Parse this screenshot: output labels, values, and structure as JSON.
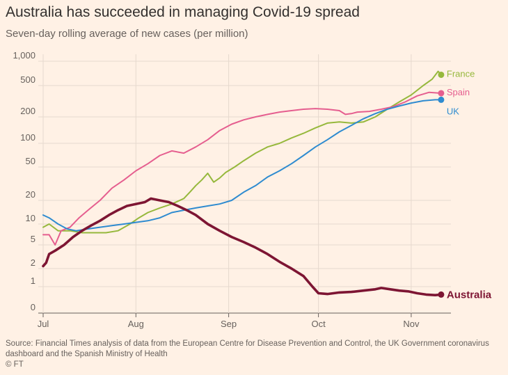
{
  "title": "Australia has succeeded in managing Covid-19 spread",
  "subtitle": "Seven-day rolling average of new cases (per million)",
  "source": "Source: Financial Times analysis of data from the European Centre for Disease Prevention and Control, the UK Government coronavirus dashboard and the Spanish Ministry of Health",
  "credit": "© FT",
  "chart_data": {
    "type": "line",
    "y_scale": "log-like (symlog)",
    "y_ticks": [
      {
        "value": 0,
        "label": "0"
      },
      {
        "value": 1,
        "label": "1"
      },
      {
        "value": 2,
        "label": "2"
      },
      {
        "value": 5,
        "label": "5"
      },
      {
        "value": 10,
        "label": "10"
      },
      {
        "value": 20,
        "label": "20"
      },
      {
        "value": 50,
        "label": "50"
      },
      {
        "value": 100,
        "label": "100"
      },
      {
        "value": 200,
        "label": "200"
      },
      {
        "value": 500,
        "label": "500"
      },
      {
        "value": 1000,
        "label": "1,000"
      }
    ],
    "x_ticks": [
      {
        "day": 1,
        "label": "Jul"
      },
      {
        "day": 32,
        "label": "Aug"
      },
      {
        "day": 63,
        "label": "Sep"
      },
      {
        "day": 93,
        "label": "Oct"
      },
      {
        "day": 124,
        "label": "Nov"
      }
    ],
    "x_range": [
      1,
      134
    ],
    "grid": true,
    "legend": "direct labels at line ends",
    "series": [
      {
        "name": "France",
        "color": "#96b83c",
        "points": [
          [
            1,
            9
          ],
          [
            3,
            10
          ],
          [
            6,
            8
          ],
          [
            10,
            8
          ],
          [
            14,
            7.5
          ],
          [
            18,
            7.5
          ],
          [
            22,
            7.5
          ],
          [
            26,
            8
          ],
          [
            30,
            10
          ],
          [
            33,
            12
          ],
          [
            36,
            14
          ],
          [
            40,
            16
          ],
          [
            44,
            18
          ],
          [
            48,
            21
          ],
          [
            50,
            25
          ],
          [
            52,
            30
          ],
          [
            54,
            35
          ],
          [
            56,
            42
          ],
          [
            58,
            33
          ],
          [
            60,
            37
          ],
          [
            62,
            43
          ],
          [
            65,
            50
          ],
          [
            68,
            60
          ],
          [
            72,
            75
          ],
          [
            76,
            90
          ],
          [
            80,
            100
          ],
          [
            84,
            115
          ],
          [
            88,
            130
          ],
          [
            92,
            150
          ],
          [
            96,
            170
          ],
          [
            100,
            175
          ],
          [
            104,
            170
          ],
          [
            108,
            175
          ],
          [
            112,
            200
          ],
          [
            116,
            250
          ],
          [
            120,
            310
          ],
          [
            124,
            380
          ],
          [
            128,
            500
          ],
          [
            131,
            600
          ],
          [
            133,
            750
          ],
          [
            134,
            680
          ]
        ]
      },
      {
        "name": "Spain",
        "color": "#e55e8f",
        "points": [
          [
            1,
            7
          ],
          [
            3,
            7
          ],
          [
            5,
            5
          ],
          [
            7,
            8
          ],
          [
            10,
            9
          ],
          [
            13,
            12
          ],
          [
            16,
            15
          ],
          [
            20,
            20
          ],
          [
            24,
            28
          ],
          [
            28,
            35
          ],
          [
            32,
            45
          ],
          [
            36,
            55
          ],
          [
            40,
            70
          ],
          [
            44,
            80
          ],
          [
            48,
            75
          ],
          [
            52,
            90
          ],
          [
            56,
            110
          ],
          [
            60,
            140
          ],
          [
            64,
            165
          ],
          [
            68,
            185
          ],
          [
            72,
            200
          ],
          [
            76,
            215
          ],
          [
            80,
            230
          ],
          [
            84,
            240
          ],
          [
            88,
            250
          ],
          [
            92,
            255
          ],
          [
            96,
            250
          ],
          [
            100,
            240
          ],
          [
            102,
            215
          ],
          [
            104,
            220
          ],
          [
            106,
            230
          ],
          [
            110,
            235
          ],
          [
            114,
            250
          ],
          [
            118,
            270
          ],
          [
            122,
            310
          ],
          [
            126,
            370
          ],
          [
            130,
            410
          ],
          [
            134,
            400
          ]
        ]
      },
      {
        "name": "UK",
        "color": "#2e8bd0",
        "points": [
          [
            1,
            13
          ],
          [
            3,
            12
          ],
          [
            6,
            10
          ],
          [
            9,
            8.5
          ],
          [
            12,
            8
          ],
          [
            16,
            8.5
          ],
          [
            20,
            9
          ],
          [
            24,
            9.5
          ],
          [
            28,
            10
          ],
          [
            32,
            10.5
          ],
          [
            36,
            11
          ],
          [
            40,
            12
          ],
          [
            44,
            14
          ],
          [
            48,
            15
          ],
          [
            52,
            16
          ],
          [
            56,
            17
          ],
          [
            60,
            18
          ],
          [
            64,
            20
          ],
          [
            68,
            25
          ],
          [
            72,
            30
          ],
          [
            76,
            38
          ],
          [
            80,
            45
          ],
          [
            84,
            55
          ],
          [
            88,
            70
          ],
          [
            92,
            90
          ],
          [
            96,
            110
          ],
          [
            100,
            135
          ],
          [
            104,
            160
          ],
          [
            108,
            190
          ],
          [
            112,
            220
          ],
          [
            116,
            250
          ],
          [
            120,
            275
          ],
          [
            124,
            300
          ],
          [
            128,
            320
          ],
          [
            132,
            330
          ],
          [
            134,
            330
          ]
        ]
      },
      {
        "name": "Australia",
        "color": "#7d1533",
        "points": [
          [
            1,
            2.2
          ],
          [
            2,
            2.5
          ],
          [
            3,
            3.5
          ],
          [
            5,
            4
          ],
          [
            8,
            5
          ],
          [
            11,
            6.5
          ],
          [
            14,
            8
          ],
          [
            17,
            9.5
          ],
          [
            20,
            11
          ],
          [
            23,
            13
          ],
          [
            26,
            15
          ],
          [
            29,
            17
          ],
          [
            32,
            18
          ],
          [
            35,
            19
          ],
          [
            37,
            21
          ],
          [
            40,
            20
          ],
          [
            43,
            19
          ],
          [
            46,
            17
          ],
          [
            49,
            15
          ],
          [
            52,
            13
          ],
          [
            56,
            10
          ],
          [
            60,
            8
          ],
          [
            64,
            6.5
          ],
          [
            68,
            5.5
          ],
          [
            72,
            4.5
          ],
          [
            76,
            3.5
          ],
          [
            80,
            2.6
          ],
          [
            84,
            2
          ],
          [
            88,
            1.5
          ],
          [
            91,
            1
          ],
          [
            93,
            0.75
          ],
          [
            96,
            0.72
          ],
          [
            100,
            0.78
          ],
          [
            104,
            0.8
          ],
          [
            108,
            0.85
          ],
          [
            112,
            0.9
          ],
          [
            114,
            0.95
          ],
          [
            117,
            0.9
          ],
          [
            120,
            0.85
          ],
          [
            123,
            0.82
          ],
          [
            126,
            0.75
          ],
          [
            129,
            0.7
          ],
          [
            132,
            0.68
          ],
          [
            134,
            0.7
          ]
        ]
      }
    ]
  }
}
